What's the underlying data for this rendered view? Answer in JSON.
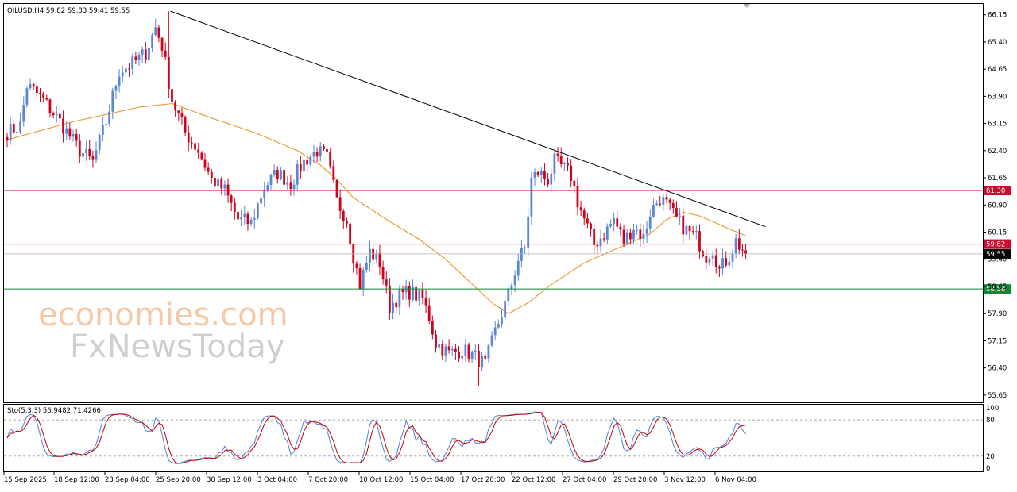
{
  "header": {
    "symbol_info": "OILUSD,H4  59.82 59.83 59.41 59.55",
    "stoch_label": "Sto(5,3,3) 56.9482 71.4266"
  },
  "watermark": {
    "line1": "economies.com",
    "line2": "FxNewsToday"
  },
  "colors": {
    "up": "#5B86D6",
    "down": "#D0021B",
    "ma": "#E69A2E",
    "trend": "#000000",
    "resistance": "#CC0A2C",
    "support": "#0C8A34",
    "price": "#b0b0b0",
    "stoch_main": "#4F7FD8",
    "stoch_signal": "#C00000"
  },
  "chart_data": [
    {
      "type": "candlestick",
      "title": "OILUSD,H4",
      "ylim": [
        55.45,
        66.45
      ],
      "y_ticks": [
        "66.15",
        "65.40",
        "64.65",
        "63.90",
        "63.15",
        "62.40",
        "61.65",
        "60.90",
        "60.15",
        "59.40",
        "58.65",
        "57.90",
        "57.15",
        "56.40",
        "55.65"
      ],
      "x_ticks": [
        "15 Sep 2025",
        "18 Sep 12:00",
        "23 Sep 04:00",
        "25 Sep 20:00",
        "30 Sep 12:00",
        "3 Oct 04:00",
        "7 Oct 20:00",
        "10 Oct 12:00",
        "15 Oct 04:00",
        "17 Oct 20:00",
        "22 Oct 12:00",
        "27 Oct 04:00",
        "29 Oct 20:00",
        "3 Nov 12:00",
        "6 Nov 04:00"
      ],
      "close_anchors": [
        [
          0,
          62.9
        ],
        [
          4,
          63.1
        ],
        [
          6,
          64.2
        ],
        [
          10,
          63.9
        ],
        [
          16,
          63.2
        ],
        [
          22,
          62.4
        ],
        [
          26,
          62.1
        ],
        [
          30,
          63.2
        ],
        [
          34,
          64.6
        ],
        [
          38,
          64.8
        ],
        [
          42,
          65.1
        ],
        [
          45,
          65.8
        ],
        [
          47,
          65.3
        ],
        [
          50,
          63.8
        ],
        [
          54,
          62.9
        ],
        [
          58,
          62.4
        ],
        [
          62,
          61.6
        ],
        [
          66,
          61.3
        ],
        [
          70,
          60.5
        ],
        [
          74,
          60.4
        ],
        [
          78,
          61.4
        ],
        [
          82,
          61.8
        ],
        [
          86,
          61.5
        ],
        [
          90,
          62.1
        ],
        [
          94,
          62.4
        ],
        [
          97,
          62.2
        ],
        [
          100,
          61.0
        ],
        [
          103,
          60.5
        ],
        [
          105,
          59.5
        ],
        [
          107,
          58.7
        ],
        [
          110,
          59.6
        ],
        [
          113,
          59.3
        ],
        [
          116,
          58.1
        ],
        [
          119,
          58.4
        ],
        [
          122,
          58.5
        ],
        [
          126,
          58.3
        ],
        [
          128,
          57.8
        ],
        [
          130,
          57.1
        ],
        [
          134,
          56.8
        ],
        [
          138,
          56.9
        ],
        [
          142,
          56.7
        ],
        [
          145,
          56.5
        ],
        [
          148,
          57.4
        ],
        [
          152,
          58.4
        ],
        [
          155,
          59.4
        ],
        [
          157,
          59.7
        ],
        [
          159,
          61.6
        ],
        [
          161,
          61.8
        ],
        [
          164,
          61.6
        ],
        [
          166,
          62.1
        ],
        [
          169,
          61.9
        ],
        [
          171,
          61.7
        ],
        [
          173,
          61.0
        ],
        [
          175,
          60.5
        ],
        [
          178,
          59.8
        ],
        [
          181,
          60.1
        ],
        [
          184,
          60.5
        ],
        [
          187,
          59.9
        ],
        [
          190,
          60.3
        ],
        [
          193,
          60.0
        ],
        [
          195,
          60.7
        ],
        [
          198,
          61.1
        ],
        [
          200,
          60.9
        ],
        [
          203,
          60.5
        ],
        [
          206,
          60.2
        ],
        [
          209,
          60.0
        ],
        [
          212,
          59.5
        ],
        [
          214,
          59.7
        ],
        [
          216,
          59.1
        ],
        [
          219,
          59.5
        ],
        [
          221,
          59.9
        ],
        [
          224,
          59.55
        ]
      ],
      "moving_average": [
        [
          0,
          62.7
        ],
        [
          20,
          63.2
        ],
        [
          40,
          63.6
        ],
        [
          50,
          63.7
        ],
        [
          62,
          63.3
        ],
        [
          75,
          62.9
        ],
        [
          88,
          62.4
        ],
        [
          95,
          62.0
        ],
        [
          100,
          61.6
        ],
        [
          105,
          61.1
        ],
        [
          115,
          60.5
        ],
        [
          125,
          59.95
        ],
        [
          133,
          59.4
        ],
        [
          140,
          58.8
        ],
        [
          147,
          58.2
        ],
        [
          152,
          57.9
        ],
        [
          158,
          58.2
        ],
        [
          165,
          58.7
        ],
        [
          175,
          59.3
        ],
        [
          185,
          59.7
        ],
        [
          195,
          60.1
        ],
        [
          200,
          60.5
        ],
        [
          205,
          60.7
        ],
        [
          210,
          60.6
        ],
        [
          215,
          60.4
        ],
        [
          220,
          60.2
        ],
        [
          224,
          60.05
        ]
      ],
      "trendline": {
        "from": [
          49.5,
          66.25
        ],
        "to": [
          230,
          60.3
        ]
      },
      "levels": [
        {
          "label": "61.30",
          "value": 61.3,
          "kind": "resistance"
        },
        {
          "label": "59.82",
          "value": 59.82,
          "kind": "resistance"
        },
        {
          "label": "59.55",
          "value": 59.55,
          "kind": "price"
        },
        {
          "label": "58.58",
          "value": 58.58,
          "kind": "support"
        }
      ]
    },
    {
      "type": "line",
      "title": "Sto(5,3,3)",
      "ylim": [
        0,
        100
      ],
      "y_ticks": [
        "100",
        "80",
        "20",
        "0"
      ],
      "levels": [
        80,
        20
      ],
      "main_last": 56.9482,
      "signal_last": 71.4266
    }
  ]
}
